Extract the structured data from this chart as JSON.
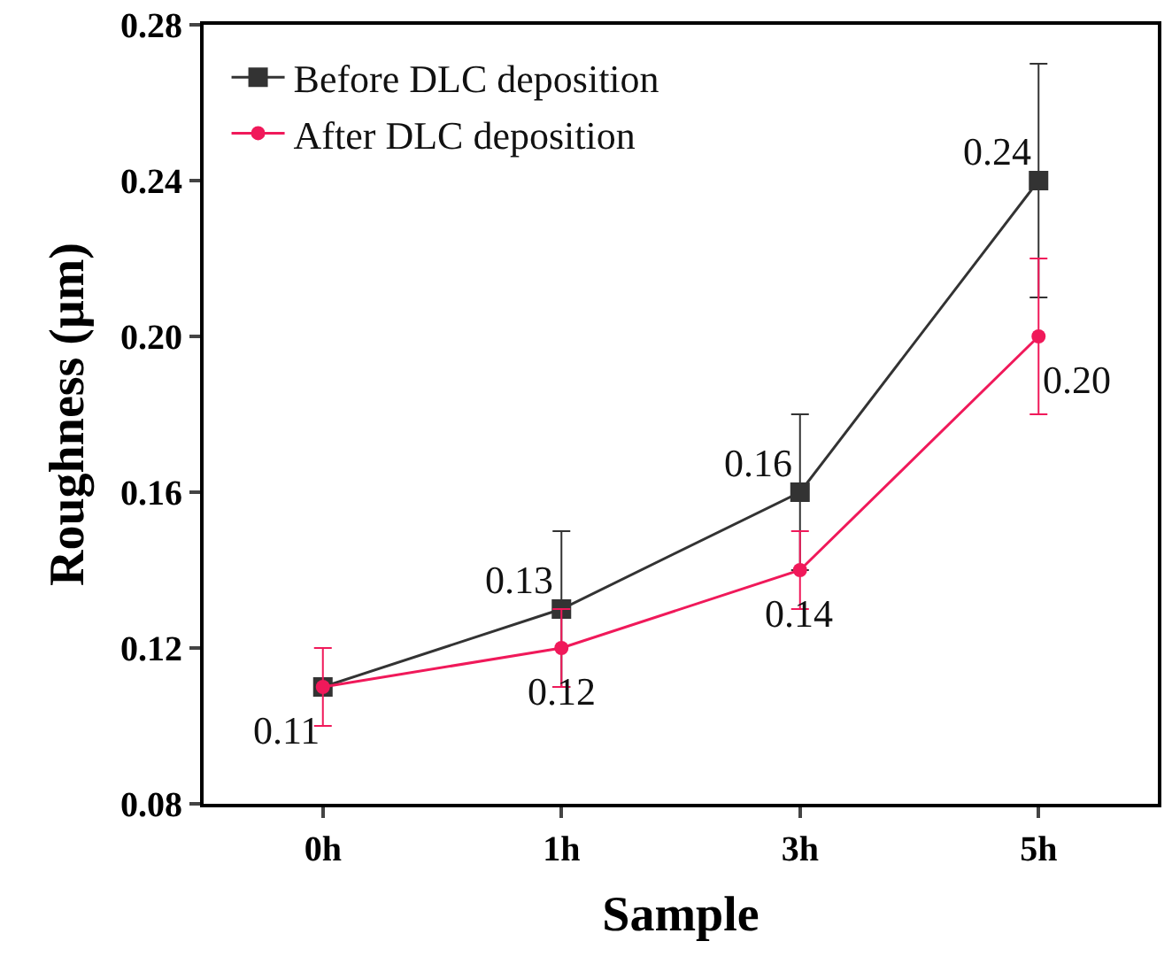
{
  "chart_data": {
    "type": "line",
    "xlabel": "Sample",
    "ylabel": "Roughness (μm)",
    "categories": [
      "0h",
      "1h",
      "3h",
      "5h"
    ],
    "series": [
      {
        "name": "Before DLC deposition",
        "color": "#333333",
        "marker": "square",
        "values": [
          0.11,
          0.13,
          0.16,
          0.24
        ],
        "errors": [
          null,
          0.02,
          0.02,
          0.03
        ],
        "value_labels": [
          null,
          "0.13",
          "0.16",
          "0.24"
        ]
      },
      {
        "name": "After DLC deposition",
        "color": "#f0195a",
        "marker": "circle",
        "values": [
          0.11,
          0.12,
          0.14,
          0.2
        ],
        "errors": [
          0.01,
          0.01,
          0.01,
          0.02
        ],
        "value_labels": [
          "0.11",
          "0.12",
          "0.14",
          "0.20"
        ]
      }
    ],
    "ylim": [
      0.08,
      0.28
    ],
    "yticks": [
      {
        "value": 0.08,
        "label": "0.08"
      },
      {
        "value": 0.12,
        "label": "0.12"
      },
      {
        "value": 0.16,
        "label": "0.16"
      },
      {
        "value": 0.2,
        "label": "0.20"
      },
      {
        "value": 0.24,
        "label": "0.24"
      },
      {
        "value": 0.28,
        "label": "0.28"
      }
    ],
    "grid": false,
    "legend": "top left",
    "line_style": "solid"
  }
}
